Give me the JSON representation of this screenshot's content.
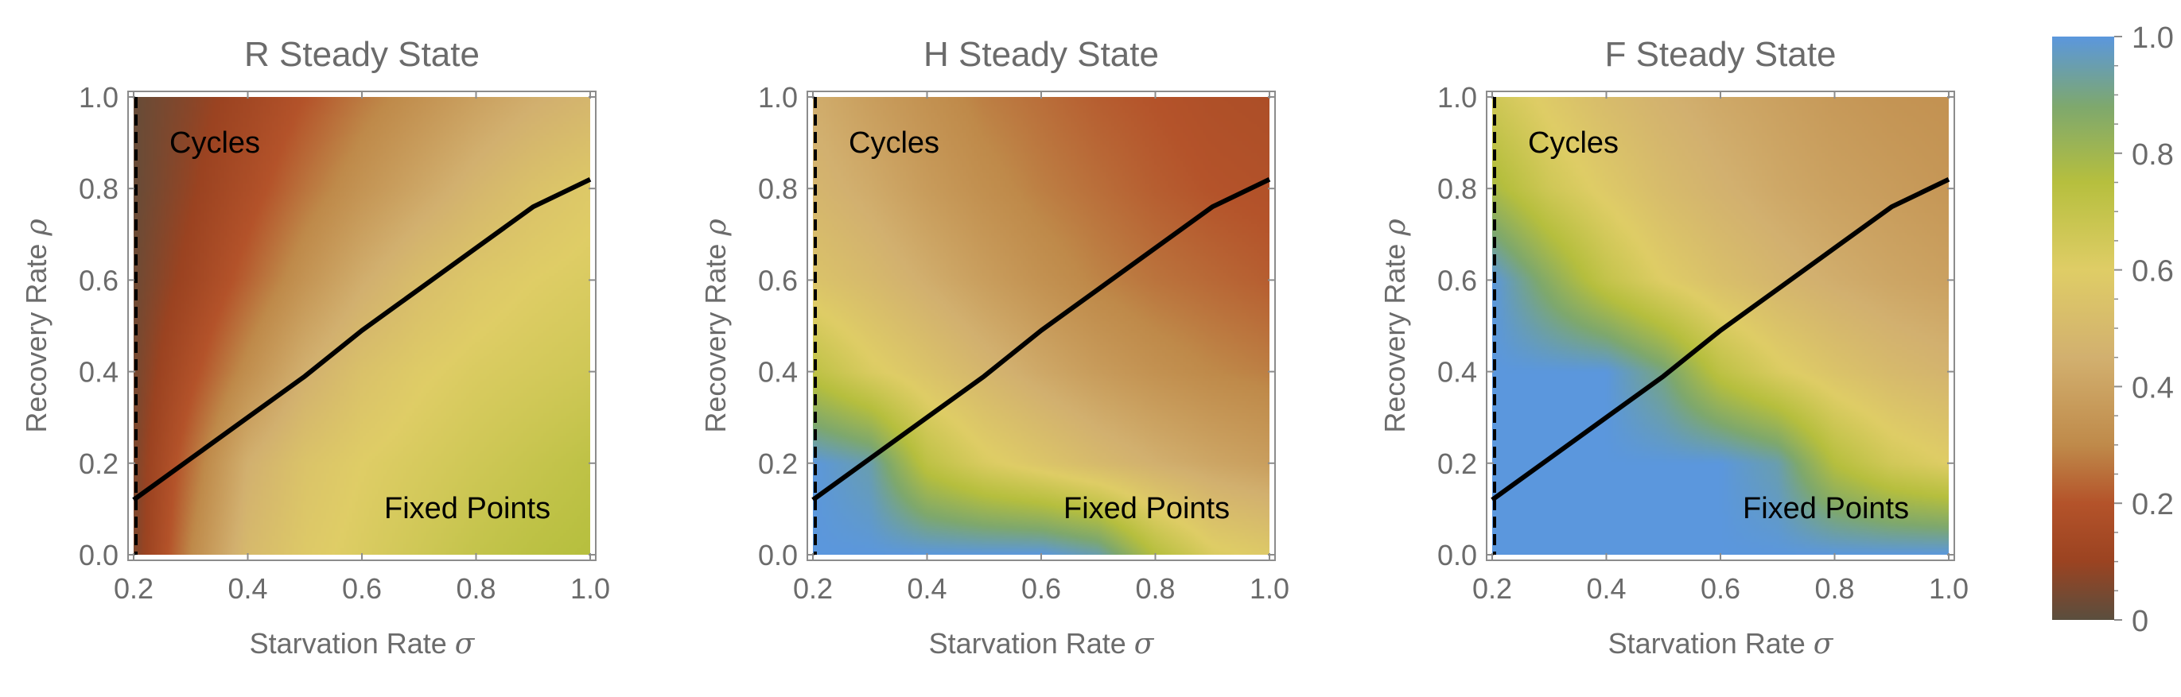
{
  "chart_data": [
    {
      "type": "heatmap",
      "title": "R Steady State",
      "xlabel": "Starvation Rate",
      "xlabel_symbol": "σ",
      "ylabel": "Recovery Rate",
      "ylabel_symbol": "ρ",
      "xlim": [
        0.2,
        1.0
      ],
      "ylim": [
        0.0,
        1.0
      ],
      "x_ticks": [
        "0.2",
        "0.4",
        "0.6",
        "0.8",
        "1.0"
      ],
      "y_ticks": [
        "0.0",
        "0.2",
        "0.4",
        "0.6",
        "0.8",
        "1.0"
      ],
      "annotations": [
        "Cycles",
        "Fixed Points"
      ],
      "boundary_curve": {
        "x": [
          0.2,
          0.3,
          0.4,
          0.5,
          0.6,
          0.7,
          0.8,
          0.9,
          1.0
        ],
        "y": [
          0.12,
          0.21,
          0.3,
          0.39,
          0.49,
          0.58,
          0.67,
          0.76,
          0.82
        ]
      },
      "dashed_line_x": 0.2,
      "values_grid": {
        "x": [
          0.2,
          0.3,
          0.4,
          0.5,
          0.6,
          0.7,
          0.8,
          0.9,
          1.0
        ],
        "y": [
          0.0,
          0.2,
          0.4,
          0.6,
          0.8,
          1.0
        ],
        "z": [
          [
            0.05,
            0.3,
            0.5,
            0.58,
            0.62,
            0.66,
            0.7,
            0.73,
            0.75
          ],
          [
            0.05,
            0.25,
            0.45,
            0.55,
            0.6,
            0.63,
            0.66,
            0.69,
            0.72
          ],
          [
            0.04,
            0.18,
            0.32,
            0.45,
            0.54,
            0.59,
            0.62,
            0.64,
            0.66
          ],
          [
            0.03,
            0.12,
            0.23,
            0.34,
            0.44,
            0.52,
            0.57,
            0.6,
            0.62
          ],
          [
            0.02,
            0.09,
            0.17,
            0.26,
            0.34,
            0.41,
            0.48,
            0.54,
            0.58
          ],
          [
            0.02,
            0.07,
            0.13,
            0.2,
            0.27,
            0.33,
            0.39,
            0.44,
            0.48
          ]
        ]
      }
    },
    {
      "type": "heatmap",
      "title": "H Steady State",
      "xlabel": "Starvation Rate",
      "xlabel_symbol": "σ",
      "ylabel": "Recovery Rate",
      "ylabel_symbol": "ρ",
      "xlim": [
        0.2,
        1.0
      ],
      "ylim": [
        0.0,
        1.0
      ],
      "x_ticks": [
        "0.2",
        "0.4",
        "0.6",
        "0.8",
        "1.0"
      ],
      "y_ticks": [
        "0.0",
        "0.2",
        "0.4",
        "0.6",
        "0.8",
        "1.0"
      ],
      "annotations": [
        "Cycles",
        "Fixed Points"
      ],
      "boundary_curve": {
        "x": [
          0.2,
          0.3,
          0.4,
          0.5,
          0.6,
          0.7,
          0.8,
          0.9,
          1.0
        ],
        "y": [
          0.12,
          0.21,
          0.3,
          0.39,
          0.49,
          0.58,
          0.67,
          0.76,
          0.82
        ]
      },
      "dashed_line_x": 0.2,
      "values_grid": {
        "x": [
          0.2,
          0.3,
          0.4,
          0.5,
          0.6,
          0.7,
          0.8,
          0.9,
          1.0
        ],
        "y": [
          0.0,
          0.2,
          0.4,
          0.6,
          0.8,
          1.0
        ],
        "z": [
          [
            1.0,
            1.0,
            1.0,
            1.0,
            1.0,
            0.95,
            0.75,
            0.62,
            0.58
          ],
          [
            1.0,
            0.95,
            0.72,
            0.62,
            0.56,
            0.5,
            0.45,
            0.41,
            0.38
          ],
          [
            0.72,
            0.62,
            0.55,
            0.48,
            0.42,
            0.37,
            0.33,
            0.3,
            0.28
          ],
          [
            0.55,
            0.5,
            0.44,
            0.38,
            0.33,
            0.29,
            0.26,
            0.24,
            0.22
          ],
          [
            0.48,
            0.43,
            0.37,
            0.32,
            0.28,
            0.25,
            0.22,
            0.2,
            0.19
          ],
          [
            0.44,
            0.38,
            0.33,
            0.28,
            0.25,
            0.22,
            0.2,
            0.18,
            0.17
          ]
        ]
      }
    },
    {
      "type": "heatmap",
      "title": "F Steady State",
      "xlabel": "Starvation Rate",
      "xlabel_symbol": "σ",
      "ylabel": "Recovery Rate",
      "ylabel_symbol": "ρ",
      "xlim": [
        0.2,
        1.0
      ],
      "ylim": [
        0.0,
        1.0
      ],
      "x_ticks": [
        "0.2",
        "0.4",
        "0.6",
        "0.8",
        "1.0"
      ],
      "y_ticks": [
        "0.0",
        "0.2",
        "0.4",
        "0.6",
        "0.8",
        "1.0"
      ],
      "annotations": [
        "Cycles",
        "Fixed Points"
      ],
      "boundary_curve": {
        "x": [
          0.2,
          0.3,
          0.4,
          0.5,
          0.6,
          0.7,
          0.8,
          0.9,
          1.0
        ],
        "y": [
          0.12,
          0.21,
          0.3,
          0.39,
          0.49,
          0.58,
          0.67,
          0.76,
          0.82
        ]
      },
      "dashed_line_x": 0.2,
      "values_grid": {
        "x": [
          0.2,
          0.3,
          0.4,
          0.5,
          0.6,
          0.7,
          0.8,
          0.9,
          1.0
        ],
        "y": [
          0.0,
          0.2,
          0.4,
          0.6,
          0.8,
          1.0
        ],
        "z": [
          [
            1.0,
            1.0,
            1.0,
            1.0,
            1.0,
            1.0,
            1.0,
            1.0,
            1.0
          ],
          [
            1.0,
            1.0,
            1.0,
            1.0,
            1.0,
            0.95,
            0.75,
            0.65,
            0.6
          ],
          [
            1.0,
            1.0,
            1.0,
            0.9,
            0.72,
            0.62,
            0.55,
            0.5,
            0.47
          ],
          [
            1.0,
            0.85,
            0.7,
            0.6,
            0.53,
            0.48,
            0.44,
            0.41,
            0.39
          ],
          [
            0.78,
            0.66,
            0.58,
            0.51,
            0.46,
            0.42,
            0.39,
            0.37,
            0.35
          ],
          [
            0.66,
            0.58,
            0.51,
            0.46,
            0.42,
            0.39,
            0.36,
            0.34,
            0.33
          ]
        ]
      }
    }
  ],
  "colorbar": {
    "range": [
      0,
      1.0
    ],
    "ticks": [
      {
        "value": 1.0,
        "label": "1.0"
      },
      {
        "value": 0.8,
        "label": "0.8"
      },
      {
        "value": 0.6,
        "label": "0.6"
      },
      {
        "value": 0.4,
        "label": "0.4"
      },
      {
        "value": 0.2,
        "label": "0.2"
      },
      {
        "value": 0.0,
        "label": "0"
      }
    ],
    "colors": [
      {
        "value": 0.0,
        "color": "#5a4e3e"
      },
      {
        "value": 0.1,
        "color": "#9b4321"
      },
      {
        "value": 0.2,
        "color": "#b4532a"
      },
      {
        "value": 0.3,
        "color": "#bf8a4a"
      },
      {
        "value": 0.45,
        "color": "#d2b06f"
      },
      {
        "value": 0.6,
        "color": "#dfcd66"
      },
      {
        "value": 0.75,
        "color": "#b6bf3e"
      },
      {
        "value": 0.88,
        "color": "#7ea86d"
      },
      {
        "value": 1.0,
        "color": "#5b97dd"
      }
    ]
  },
  "colors": {
    "text": "#6b6b6b",
    "curve": "#000000",
    "axis": "#8c8c8c"
  }
}
